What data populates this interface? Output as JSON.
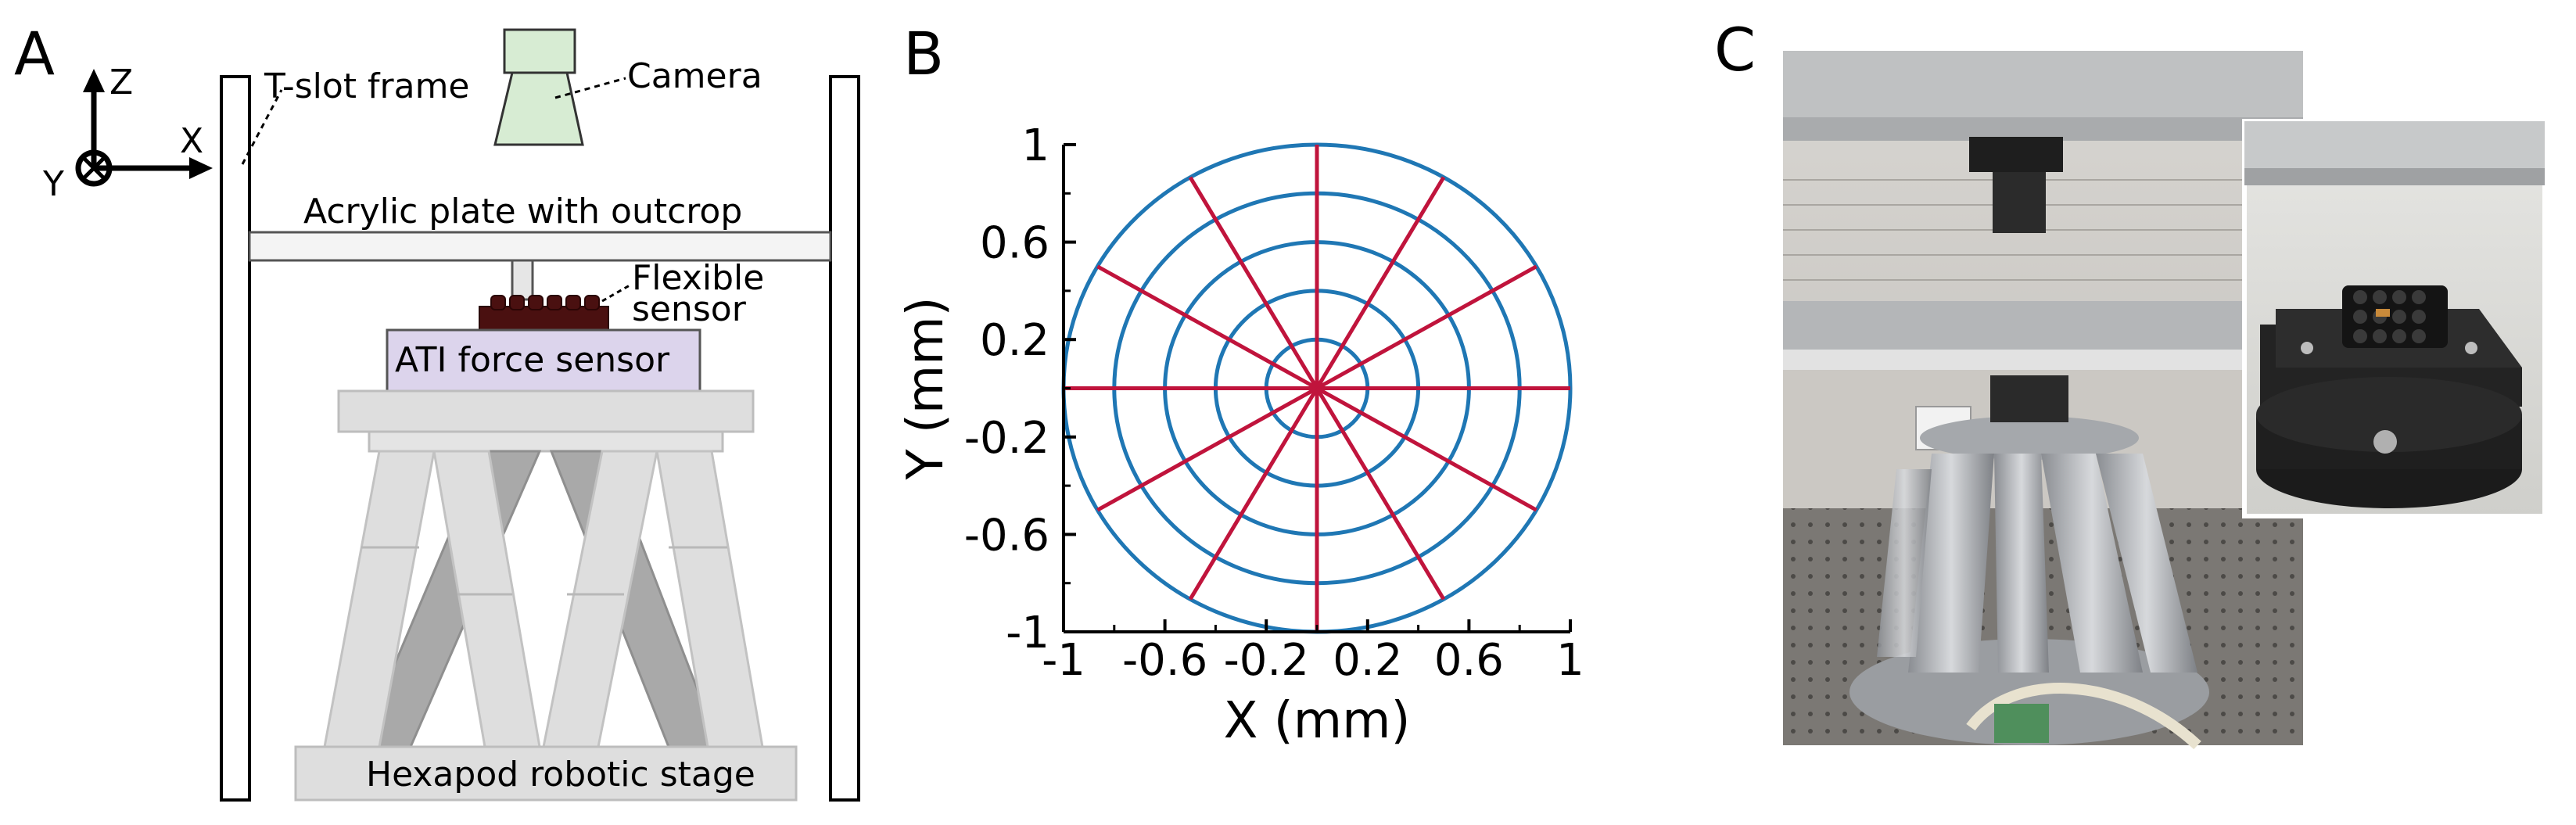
{
  "panels": {
    "a": {
      "label": "A",
      "axes": {
        "z": "Z",
        "x": "X",
        "y": "Y"
      },
      "labels": {
        "frame": "T-slot frame",
        "camera": "Camera",
        "plate": "Acrylic plate with outcrop",
        "flexible_line1": "Flexible",
        "flexible_line2": "sensor",
        "ati": "ATI force sensor",
        "hexapod": "Hexapod robotic stage"
      },
      "colors": {
        "camera_fill": "#d7ecd3",
        "ati_fill": "#dcd4ec",
        "sensor_fill": "#4a1010",
        "leg_light": "#dedede",
        "leg_dark": "#a9a9a9"
      }
    },
    "b": {
      "label": "B"
    },
    "c": {
      "label": "C",
      "photo_main": "hexapod-setup-photo",
      "photo_inset": "sensor-closeup-photo"
    }
  },
  "chart_data": {
    "type": "line",
    "xlabel": "X (mm)",
    "ylabel": "Y (mm)",
    "xlim": [
      -1,
      1
    ],
    "ylim": [
      -1,
      1
    ],
    "xticks": [
      -1,
      -0.6,
      -0.2,
      0.2,
      0.6,
      1
    ],
    "yticks": [
      -1,
      -0.6,
      -0.2,
      0.2,
      0.6,
      1
    ],
    "tick_labels": [
      "-1",
      "-0.6",
      "-0.2",
      "0.2",
      "0.6",
      "1"
    ],
    "grid": false,
    "series": [
      {
        "kind": "circles",
        "color": "#1f77b4",
        "radii": [
          0.2,
          0.4,
          0.6,
          0.8,
          1.0
        ],
        "center": [
          0,
          0
        ]
      },
      {
        "kind": "radial_lines",
        "color": "#c0143c",
        "radius": 1.0,
        "angles_deg": [
          0,
          30,
          60,
          90,
          120,
          150,
          180,
          210,
          240,
          270,
          300,
          330
        ]
      }
    ]
  }
}
